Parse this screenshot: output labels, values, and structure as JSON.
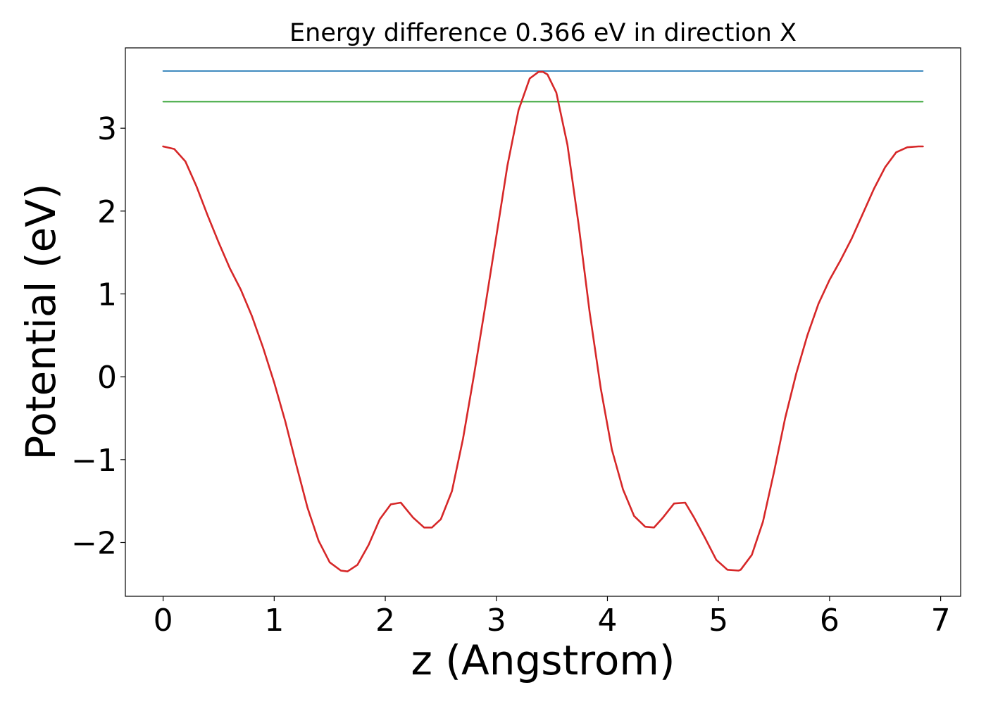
{
  "chart_data": {
    "type": "line",
    "title": "Energy difference 0.366 eV in direction X",
    "xlabel": "z (Angstrom)",
    "ylabel": "Potential (eV)",
    "xlim": [
      -0.34,
      7.18
    ],
    "ylim": [
      -2.65,
      3.97
    ],
    "xticks": [
      0,
      1,
      2,
      3,
      4,
      5,
      6,
      7
    ],
    "xtick_labels": [
      "0",
      "1",
      "2",
      "3",
      "4",
      "5",
      "6",
      "7"
    ],
    "yticks": [
      -2,
      -1,
      0,
      1,
      2,
      3
    ],
    "ytick_labels": [
      "−2",
      "−1",
      "0",
      "1",
      "2",
      "3"
    ],
    "grid": false,
    "series": [
      {
        "color": "#1f77b4",
        "x": [
          0,
          6.84
        ],
        "y": [
          3.69,
          3.69
        ]
      },
      {
        "color": "#2ca02c",
        "x": [
          0,
          6.84
        ],
        "y": [
          3.32,
          3.32
        ]
      },
      {
        "color": "#d62728",
        "x": [
          0,
          0.1,
          0.2,
          0.3,
          0.4,
          0.5,
          0.6,
          0.7,
          0.8,
          0.9,
          1.0,
          1.1,
          1.2,
          1.3,
          1.4,
          1.5,
          1.6,
          1.66,
          1.75,
          1.85,
          1.95,
          2.05,
          2.14,
          2.25,
          2.35,
          2.42,
          2.5,
          2.6,
          2.7,
          2.8,
          2.9,
          3.0,
          3.1,
          3.2,
          3.3,
          3.38,
          3.42,
          3.46,
          3.54,
          3.64,
          3.74,
          3.84,
          3.94,
          4.04,
          4.14,
          4.24,
          4.34,
          4.42,
          4.5,
          4.6,
          4.7,
          4.78,
          4.88,
          4.98,
          5.08,
          5.18,
          5.2,
          5.3,
          5.4,
          5.5,
          5.6,
          5.7,
          5.8,
          5.9,
          6.0,
          6.1,
          6.2,
          6.3,
          6.4,
          6.5,
          6.6,
          6.7,
          6.8,
          6.84
        ],
        "y": [
          2.78,
          2.75,
          2.6,
          2.3,
          1.95,
          1.62,
          1.31,
          1.05,
          0.73,
          0.35,
          -0.07,
          -0.54,
          -1.07,
          -1.58,
          -1.98,
          -2.24,
          -2.34,
          -2.35,
          -2.27,
          -2.03,
          -1.72,
          -1.54,
          -1.52,
          -1.7,
          -1.82,
          -1.82,
          -1.72,
          -1.38,
          -0.75,
          0.03,
          0.85,
          1.7,
          2.55,
          3.22,
          3.6,
          3.68,
          3.68,
          3.65,
          3.43,
          2.8,
          1.84,
          0.78,
          -0.14,
          -0.88,
          -1.36,
          -1.68,
          -1.81,
          -1.82,
          -1.7,
          -1.53,
          -1.52,
          -1.7,
          -1.95,
          -2.21,
          -2.33,
          -2.34,
          -2.33,
          -2.15,
          -1.75,
          -1.15,
          -0.5,
          0.04,
          0.5,
          0.88,
          1.17,
          1.41,
          1.67,
          1.97,
          2.27,
          2.53,
          2.71,
          2.77,
          2.78,
          2.78
        ]
      }
    ]
  }
}
